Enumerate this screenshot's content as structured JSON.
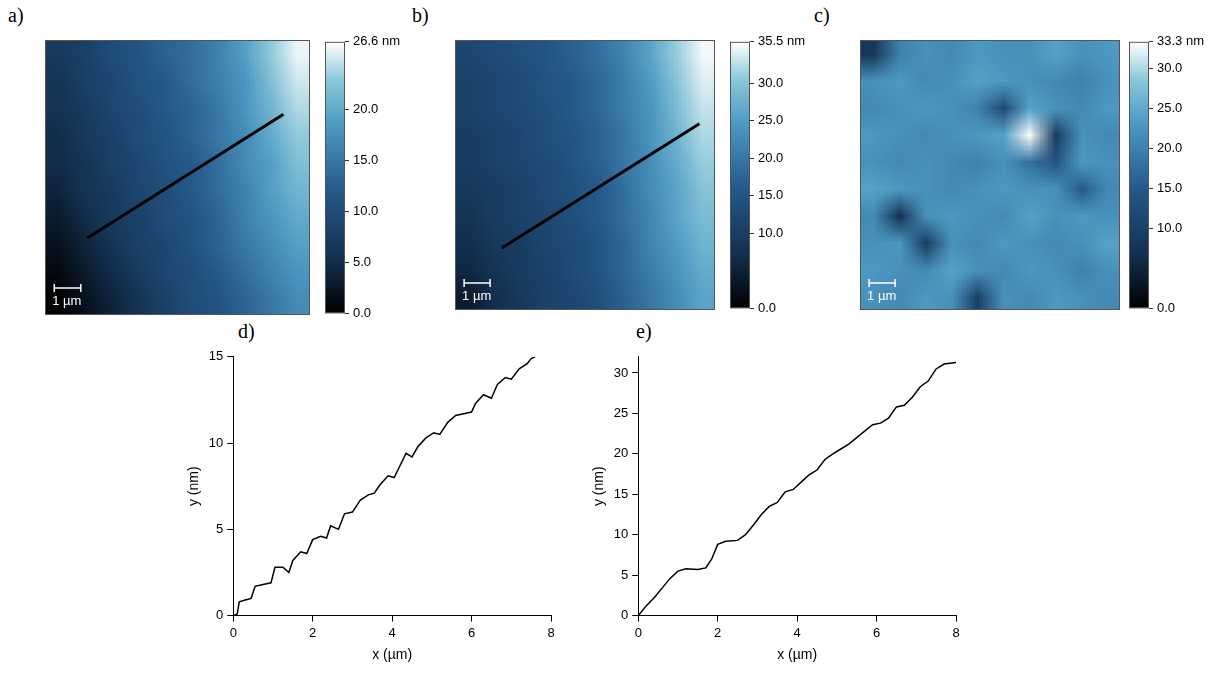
{
  "chart_data": [
    {
      "type": "heatmap",
      "panel": "a)",
      "tick_labels": false,
      "xlim": [
        0,
        10
      ],
      "ylim": [
        0,
        10
      ],
      "cells": [
        [
          7,
          8,
          10,
          11,
          13,
          14,
          16,
          19,
          23,
          26
        ],
        [
          6,
          8,
          9,
          11,
          12,
          14,
          16,
          18,
          22,
          25
        ],
        [
          6,
          7,
          9,
          10,
          12,
          13,
          15,
          18,
          21,
          24
        ],
        [
          5,
          7,
          8,
          10,
          11,
          13,
          15,
          17,
          20,
          23
        ],
        [
          5,
          6,
          8,
          9,
          11,
          12,
          14,
          17,
          19,
          22
        ],
        [
          4,
          6,
          7,
          9,
          10,
          12,
          14,
          16,
          19,
          21
        ],
        [
          3,
          5,
          7,
          8,
          10,
          11,
          13,
          16,
          18,
          20
        ],
        [
          2,
          4,
          6,
          8,
          9,
          11,
          13,
          15,
          17,
          19
        ],
        [
          1,
          3,
          5,
          7,
          9,
          10,
          12,
          14,
          16,
          18
        ],
        [
          0,
          2,
          4,
          6,
          8,
          10,
          11,
          13,
          15,
          17
        ]
      ],
      "colorbar": {
        "range": [
          0,
          26.6
        ],
        "ticks": [
          {
            "value": 0,
            "label": "0.0"
          },
          {
            "value": 5,
            "label": "5.0"
          },
          {
            "value": 10,
            "label": "10.0"
          },
          {
            "value": 15,
            "label": "15.0"
          },
          {
            "value": 20,
            "label": "20.0"
          },
          {
            "value": 26.6,
            "label": "26.6 nm"
          }
        ]
      },
      "scale_bar": {
        "label": "1 µm",
        "length": 1
      },
      "profile_line": {
        "color": "#000000",
        "points": [
          [
            1.6,
            2.8
          ],
          [
            9.0,
            7.3
          ]
        ]
      }
    },
    {
      "type": "heatmap",
      "panel": "b)",
      "tick_labels": false,
      "xlim": [
        0,
        10
      ],
      "ylim": [
        0,
        10
      ],
      "cells": [
        [
          12,
          13,
          14,
          15,
          17,
          19,
          22,
          26,
          31,
          35
        ],
        [
          11,
          12,
          13,
          15,
          16,
          18,
          21,
          25,
          30,
          34
        ],
        [
          11,
          12,
          13,
          14,
          16,
          18,
          21,
          24,
          29,
          33
        ],
        [
          10,
          11,
          12,
          14,
          15,
          17,
          20,
          24,
          28,
          32
        ],
        [
          10,
          11,
          12,
          13,
          15,
          17,
          20,
          23,
          27,
          31
        ],
        [
          9,
          10,
          11,
          13,
          14,
          16,
          19,
          23,
          26,
          30
        ],
        [
          8,
          10,
          11,
          12,
          14,
          16,
          19,
          22,
          26,
          29
        ],
        [
          7,
          9,
          10,
          12,
          13,
          15,
          18,
          22,
          25,
          28
        ],
        [
          6,
          8,
          10,
          11,
          13,
          15,
          18,
          21,
          24,
          27
        ],
        [
          4,
          7,
          9,
          11,
          12,
          14,
          17,
          20,
          23,
          26
        ]
      ],
      "colorbar": {
        "range": [
          0,
          35.5
        ],
        "ticks": [
          {
            "value": 0,
            "label": "0.0"
          },
          {
            "value": 10,
            "label": "10.0"
          },
          {
            "value": 15,
            "label": "15.0"
          },
          {
            "value": 20,
            "label": "20.0"
          },
          {
            "value": 25,
            "label": "25.0"
          },
          {
            "value": 30,
            "label": "30.0"
          },
          {
            "value": 35.5,
            "label": "35.5 nm"
          }
        ]
      },
      "scale_bar": {
        "label": "1 µm",
        "length": 1
      },
      "profile_line": {
        "color": "#000000",
        "points": [
          [
            1.8,
            2.3
          ],
          [
            9.4,
            6.9
          ]
        ]
      }
    },
    {
      "type": "heatmap",
      "panel": "c)",
      "tick_labels": false,
      "xlim": [
        0,
        10
      ],
      "ylim": [
        0,
        10
      ],
      "cells": [
        [
          8,
          20,
          22,
          21,
          23,
          22,
          22,
          24,
          22,
          23
        ],
        [
          22,
          23,
          21,
          22,
          24,
          23,
          22,
          21,
          20,
          22
        ],
        [
          21,
          22,
          23,
          22,
          20,
          12,
          24,
          22,
          21,
          23
        ],
        [
          23,
          22,
          21,
          22,
          23,
          24,
          33,
          9,
          22,
          21
        ],
        [
          22,
          21,
          22,
          21,
          20,
          22,
          18,
          14,
          23,
          22
        ],
        [
          24,
          23,
          22,
          21,
          22,
          23,
          22,
          22,
          15,
          21
        ],
        [
          21,
          7,
          22,
          23,
          22,
          21,
          24,
          22,
          23,
          22
        ],
        [
          22,
          23,
          9,
          22,
          21,
          23,
          22,
          21,
          22,
          24
        ],
        [
          23,
          22,
          21,
          24,
          22,
          21,
          23,
          22,
          20,
          22
        ],
        [
          22,
          21,
          23,
          22,
          10,
          22,
          21,
          23,
          22,
          21
        ]
      ],
      "colorbar": {
        "range": [
          0,
          33.3
        ],
        "ticks": [
          {
            "value": 0,
            "label": "0.0"
          },
          {
            "value": 10,
            "label": "10.0"
          },
          {
            "value": 15,
            "label": "15.0"
          },
          {
            "value": 20,
            "label": "20.0"
          },
          {
            "value": 25,
            "label": "25.0"
          },
          {
            "value": 30,
            "label": "30.0"
          },
          {
            "value": 33.3,
            "label": "33.3 nm"
          }
        ]
      },
      "scale_bar": {
        "label": "1 µm",
        "length": 1
      }
    },
    {
      "type": "line",
      "panel": "d)",
      "x_label": "x (µm)",
      "y_label": "y (nm)",
      "xlim": [
        0,
        8
      ],
      "xticks": [
        0,
        2,
        4,
        6,
        8
      ],
      "ylim": [
        0,
        15
      ],
      "yticks": [
        0,
        5,
        10,
        15
      ],
      "series": [
        {
          "color": "#000000",
          "x": [
            0,
            0.1,
            0.15,
            0.3,
            0.45,
            0.55,
            0.75,
            0.95,
            1.05,
            1.25,
            1.4,
            1.5,
            1.7,
            1.85,
            2.0,
            2.2,
            2.35,
            2.45,
            2.65,
            2.8,
            3.0,
            3.2,
            3.4,
            3.55,
            3.7,
            3.9,
            4.05,
            4.2,
            4.35,
            4.5,
            4.65,
            4.85,
            5.05,
            5.2,
            5.4,
            5.6,
            5.8,
            6.0,
            6.1,
            6.3,
            6.5,
            6.65,
            6.85,
            7.0,
            7.2,
            7.4,
            7.5,
            7.6
          ],
          "values": [
            0,
            0.1,
            0.8,
            0.9,
            1.0,
            1.7,
            1.8,
            1.9,
            2.8,
            2.8,
            2.5,
            3.2,
            3.7,
            3.6,
            4.4,
            4.6,
            4.5,
            5.2,
            5.0,
            5.9,
            6.0,
            6.7,
            7.0,
            7.1,
            7.6,
            8.1,
            8.0,
            8.7,
            9.4,
            9.2,
            9.8,
            10.3,
            10.6,
            10.5,
            11.2,
            11.6,
            11.7,
            11.8,
            12.3,
            12.8,
            12.6,
            13.4,
            13.8,
            13.7,
            14.3,
            14.6,
            14.9,
            15.0
          ]
        }
      ]
    },
    {
      "type": "line",
      "panel": "e)",
      "x_label": "x (µm)",
      "y_label": "y (nm)",
      "xlim": [
        0,
        8
      ],
      "xticks": [
        0,
        2,
        4,
        6,
        8
      ],
      "ylim": [
        0,
        32
      ],
      "yticks": [
        0,
        5,
        10,
        15,
        20,
        25,
        30
      ],
      "series": [
        {
          "color": "#000000",
          "x": [
            0,
            0.2,
            0.4,
            0.6,
            0.8,
            1.0,
            1.2,
            1.5,
            1.7,
            1.85,
            2.0,
            2.2,
            2.5,
            2.7,
            2.9,
            3.1,
            3.3,
            3.5,
            3.7,
            3.9,
            4.1,
            4.3,
            4.5,
            4.7,
            4.9,
            5.1,
            5.3,
            5.5,
            5.7,
            5.9,
            6.1,
            6.3,
            6.5,
            6.7,
            6.9,
            7.1,
            7.3,
            7.5,
            7.7,
            8.0
          ],
          "values": [
            0,
            1.2,
            2.2,
            3.4,
            4.6,
            5.5,
            5.8,
            5.7,
            5.9,
            7.0,
            8.8,
            9.2,
            9.3,
            10.0,
            11.2,
            12.5,
            13.5,
            14.0,
            15.3,
            15.6,
            16.5,
            17.4,
            18.0,
            19.3,
            20.0,
            20.6,
            21.2,
            22.0,
            22.8,
            23.6,
            23.8,
            24.4,
            25.8,
            26.0,
            27.0,
            28.3,
            29.0,
            30.5,
            31.1,
            31.3
          ]
        }
      ]
    }
  ]
}
